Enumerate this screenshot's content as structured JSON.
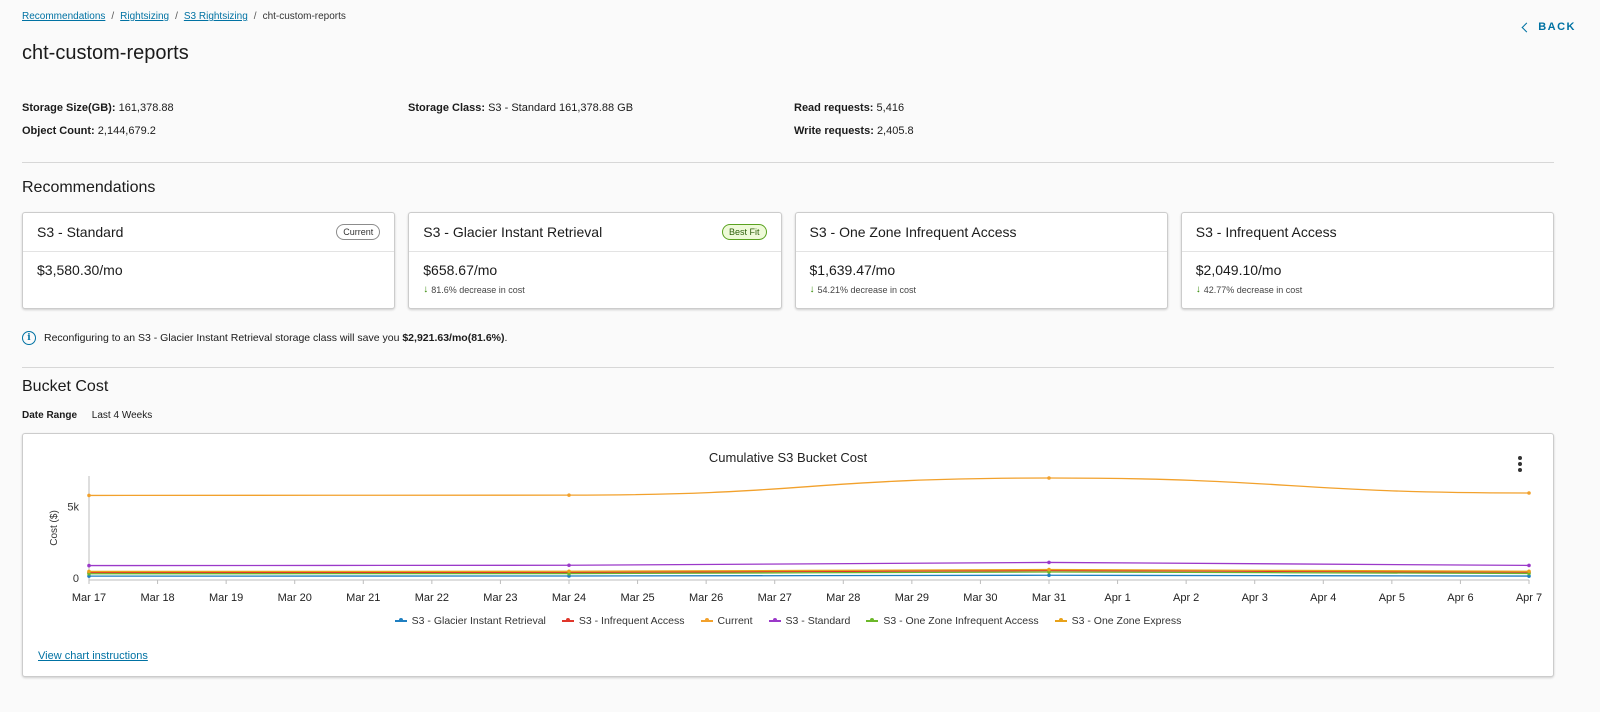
{
  "breadcrumb": [
    {
      "label": "Recommendations",
      "link": true
    },
    {
      "label": "Rightsizing",
      "link": true
    },
    {
      "label": "S3 Rightsizing",
      "link": true
    },
    {
      "label": "cht-custom-reports",
      "link": false
    }
  ],
  "back_label": "BACK",
  "page_title": "cht-custom-reports",
  "summary": {
    "storage_size_label": "Storage Size(GB):",
    "storage_size_value": "161,378.88",
    "object_count_label": "Object Count:",
    "object_count_value": "2,144,679.2",
    "storage_class_label": "Storage Class:",
    "storage_class_value": "S3 - Standard 161,378.88 GB",
    "read_requests_label": "Read requests:",
    "read_requests_value": "5,416",
    "write_requests_label": "Write requests:",
    "write_requests_value": "2,405.8"
  },
  "recommendations_title": "Recommendations",
  "cards": [
    {
      "title": "S3 - Standard",
      "badge": "Current",
      "badge_style": "neutral",
      "price": "$3,580.30/mo",
      "delta": ""
    },
    {
      "title": "S3 - Glacier Instant Retrieval",
      "badge": "Best Fit",
      "badge_style": "green",
      "price": "$658.67/mo",
      "delta": "81.6% decrease in cost"
    },
    {
      "title": "S3 - One Zone Infrequent Access",
      "badge": "",
      "badge_style": "",
      "price": "$1,639.47/mo",
      "delta": "54.21% decrease in cost"
    },
    {
      "title": "S3 - Infrequent Access",
      "badge": "",
      "badge_style": "",
      "price": "$2,049.10/mo",
      "delta": "42.77% decrease in cost"
    }
  ],
  "info": {
    "text_before": "Reconfiguring to an S3 - Glacier Instant Retrieval storage class will save you ",
    "savings": "$2,921.63/mo(81.6%)",
    "text_after": "."
  },
  "bucket_cost_title": "Bucket Cost",
  "date_range": {
    "label": "Date Range",
    "value": "Last 4 Weeks"
  },
  "chart_link": "View chart instructions",
  "colors": {
    "accent": "#0072a3",
    "green": "#318700"
  },
  "chart_data": {
    "type": "line",
    "title": "Cumulative S3 Bucket Cost",
    "xlabel": "",
    "ylabel": "Cost ($)",
    "ylim": [
      0,
      7000
    ],
    "yticks": [
      {
        "value": 0,
        "label": "0"
      },
      {
        "value": 5000,
        "label": "5k"
      }
    ],
    "grid": false,
    "legend": "bottom",
    "x": [
      "Mar 17",
      "Mar 18",
      "Mar 19",
      "Mar 20",
      "Mar 21",
      "Mar 22",
      "Mar 23",
      "Mar 24",
      "Mar 25",
      "Mar 26",
      "Mar 27",
      "Mar 28",
      "Mar 29",
      "Mar 30",
      "Mar 31",
      "Apr 1",
      "Apr 2",
      "Apr 3",
      "Apr 4",
      "Apr 5",
      "Apr 6",
      "Apr 7"
    ],
    "series": [
      {
        "name": "S3 - Glacier Instant Retrieval",
        "color": "#1f7fc1",
        "points": [
          [
            0,
            130
          ],
          [
            7,
            140
          ],
          [
            14,
            190
          ],
          [
            21,
            135
          ]
        ]
      },
      {
        "name": "S3 - Infrequent Access",
        "color": "#e0362b",
        "points": [
          [
            0,
            380
          ],
          [
            7,
            390
          ],
          [
            14,
            520
          ],
          [
            21,
            400
          ]
        ]
      },
      {
        "name": "Current",
        "color": "#f2a12c",
        "points": [
          [
            0,
            5780
          ],
          [
            7,
            5800
          ],
          [
            14,
            7000
          ],
          [
            21,
            5950
          ]
        ]
      },
      {
        "name": "S3 - Standard",
        "color": "#9b39c9",
        "points": [
          [
            0,
            870
          ],
          [
            7,
            890
          ],
          [
            14,
            1090
          ],
          [
            21,
            880
          ]
        ]
      },
      {
        "name": "S3 - One Zone Infrequent Access",
        "color": "#6cb82a",
        "points": [
          [
            0,
            300
          ],
          [
            7,
            310
          ],
          [
            14,
            420
          ],
          [
            21,
            320
          ]
        ]
      },
      {
        "name": "S3 - One Zone Express",
        "color": "#e8a21a",
        "points": [
          [
            0,
            460
          ],
          [
            7,
            470
          ],
          [
            14,
            590
          ],
          [
            21,
            470
          ]
        ]
      }
    ]
  }
}
